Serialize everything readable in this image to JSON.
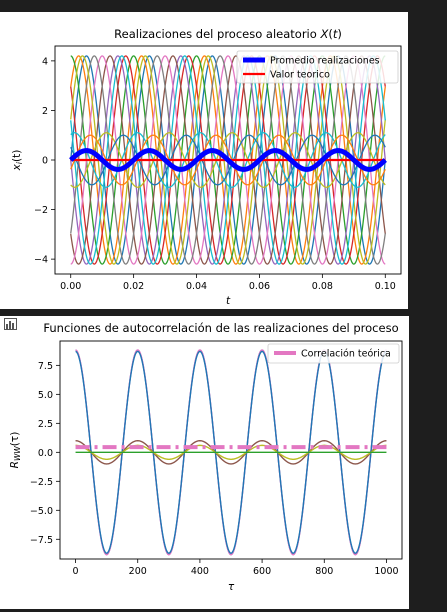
{
  "chart_data": [
    {
      "type": "line",
      "title": "Realizaciones del proceso aleatorio X(t)",
      "title_parts": [
        "Realizaciones del proceso aleatorio ",
        "X",
        "(",
        "t",
        ")"
      ],
      "xlabel": "t",
      "ylabel": "x_i(t)",
      "ylabel_parts": [
        "x",
        "i",
        "(t)"
      ],
      "xlim": [
        -0.005,
        0.105
      ],
      "ylim": [
        -4.6,
        4.6
      ],
      "x_ticks": [
        0.0,
        0.02,
        0.04,
        0.06,
        0.08,
        0.1
      ],
      "x_tick_labels": [
        "0.00",
        "0.02",
        "0.04",
        "0.06",
        "0.08",
        "0.10"
      ],
      "y_ticks": [
        -4,
        -2,
        0,
        2,
        4
      ],
      "y_tick_labels": [
        "−4",
        "−2",
        "0",
        "2",
        "4"
      ],
      "grid": false,
      "legend": {
        "placement": "top-right",
        "entries": [
          {
            "label": "Promedio realizaciones",
            "color": "#0000ff"
          },
          {
            "label": "Valor teorico",
            "color": "#ff0000"
          }
        ]
      },
      "frequency_hz": 50,
      "realizations": [
        {
          "amplitude": 4.2,
          "phase": 0.0,
          "color": "#1f77b4"
        },
        {
          "amplitude": 4.2,
          "phase": 0.78,
          "color": "#ff7f0e"
        },
        {
          "amplitude": 4.2,
          "phase": 1.57,
          "color": "#2ca02c"
        },
        {
          "amplitude": 4.2,
          "phase": 2.36,
          "color": "#d62728"
        },
        {
          "amplitude": 4.2,
          "phase": 3.14,
          "color": "#9467bd"
        },
        {
          "amplitude": 4.2,
          "phase": 3.93,
          "color": "#8c564b"
        },
        {
          "amplitude": 4.2,
          "phase": 4.71,
          "color": "#e377c2"
        },
        {
          "amplitude": 4.2,
          "phase": 5.5,
          "color": "#7f7f7f"
        },
        {
          "amplitude": 4.2,
          "phase": 0.4,
          "color": "#bcbd22"
        },
        {
          "amplitude": 4.2,
          "phase": 2.75,
          "color": "#17becf"
        },
        {
          "amplitude": 1.1,
          "phase": 1.2,
          "color": "#17becf"
        },
        {
          "amplitude": 1.1,
          "phase": 4.3,
          "color": "#bcbd22"
        },
        {
          "amplitude": 1.0,
          "phase": 5.9,
          "color": "#ff7f0e"
        },
        {
          "amplitude": 1.0,
          "phase": 2.6,
          "color": "#1f77b4"
        }
      ],
      "average": {
        "amplitude": 0.38,
        "phase": 0.0,
        "color": "#0000ff"
      },
      "theoretical_value": {
        "y": 0.0,
        "color": "#ff0000"
      }
    },
    {
      "type": "line",
      "title": "Funciones de autocorrelación de las realizaciones del proceso",
      "xlabel": "τ",
      "ylabel": "R_WW(τ)",
      "ylabel_parts": [
        "R",
        "WW",
        "(τ)"
      ],
      "xlim": [
        -50,
        1050
      ],
      "ylim": [
        -9.2,
        9.6
      ],
      "x_ticks": [
        0,
        200,
        400,
        600,
        800,
        1000
      ],
      "x_tick_labels": [
        "0",
        "200",
        "400",
        "600",
        "800",
        "1000"
      ],
      "y_ticks": [
        -7.5,
        -5.0,
        -2.5,
        0.0,
        2.5,
        5.0,
        7.5
      ],
      "y_tick_labels": [
        "−7.5",
        "−5.0",
        "−2.5",
        "0.0",
        "2.5",
        "5.0",
        "7.5"
      ],
      "grid": false,
      "legend": {
        "placement": "top-right",
        "entries": [
          {
            "label": "Correlación teórica",
            "color": "#e377c2"
          }
        ]
      },
      "period_samples": 200,
      "series": [
        {
          "amplitude": 8.82,
          "color": "#9467bd"
        },
        {
          "amplitude": 8.82,
          "color": "#e377c2"
        },
        {
          "amplitude": 8.7,
          "color": "#1f77b4"
        },
        {
          "amplitude": 1.0,
          "color": "#8c564b"
        },
        {
          "amplitude": 0.6,
          "color": "#bcbd22"
        },
        {
          "amplitude": 0.0,
          "color": "#2ca02c"
        }
      ],
      "theoretical": {
        "y": 0.45,
        "color": "#e377c2"
      }
    }
  ]
}
